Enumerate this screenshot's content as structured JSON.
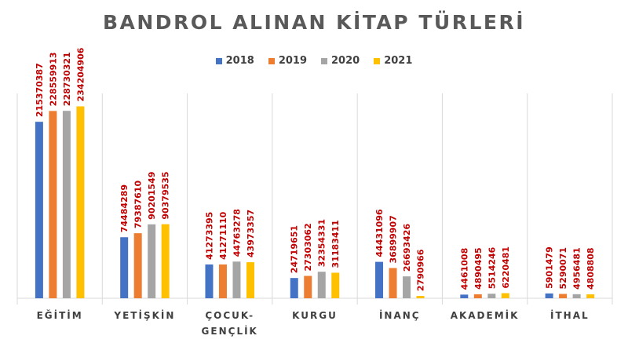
{
  "chart_data": {
    "type": "bar",
    "title": "BANDROL ALINAN KİTAP TÜRLERİ",
    "categories": [
      "EĞİTİM",
      "YETİŞKİN",
      "ÇOCUK-GENÇLİK",
      "KURGU",
      "İNANÇ",
      "AKADEMİK",
      "İTHAL"
    ],
    "category_lines": [
      [
        "EĞİTİM"
      ],
      [
        "YETİŞKİN"
      ],
      [
        "ÇOCUK-",
        "GENÇLİK"
      ],
      [
        "KURGU"
      ],
      [
        "İNANÇ"
      ],
      [
        "AKADEMİK"
      ],
      [
        "İTHAL"
      ]
    ],
    "series": [
      {
        "name": "2018",
        "color": "#4472c4",
        "values": [
          215370387,
          74484289,
          41273395,
          24719651,
          44431096,
          4461008,
          5901479
        ]
      },
      {
        "name": "2019",
        "color": "#ed7d31",
        "values": [
          228559913,
          79387610,
          41271110,
          27303062,
          36899907,
          4890495,
          5290071
        ]
      },
      {
        "name": "2020",
        "color": "#a5a5a5",
        "values": [
          228730321,
          90201549,
          44763278,
          32354331,
          26693426,
          5514246,
          4956481
        ]
      },
      {
        "name": "2021",
        "color": "#ffc000",
        "values": [
          234204906,
          90379535,
          43973357,
          31183411,
          2790966,
          6220481,
          4808808
        ]
      }
    ],
    "legend_position": "top",
    "grid": false,
    "ylim": [
      0,
      250000000
    ],
    "data_label_color": "#c00000"
  }
}
